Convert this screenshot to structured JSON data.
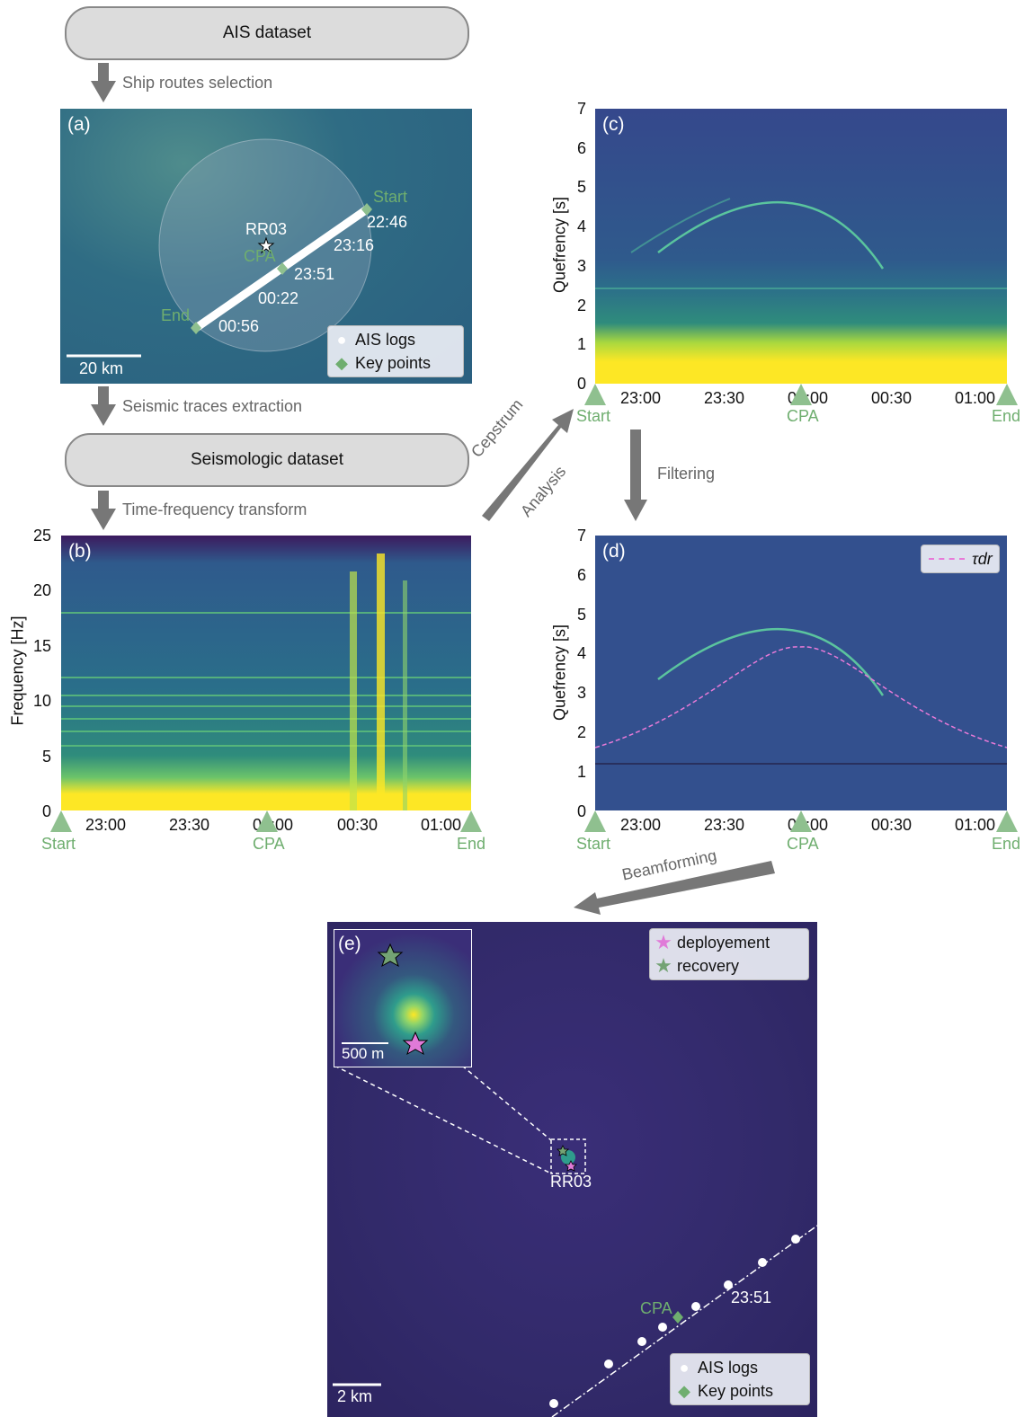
{
  "boxes": {
    "ais": "AIS dataset",
    "seismo": "Seismologic dataset"
  },
  "steps": {
    "route": "Ship routes selection",
    "extract": "Seismic traces extraction",
    "tf": "Time-frequency transform",
    "cepstrum1": "Cepstrum",
    "cepstrum2": "Analysis",
    "filtering": "Filtering",
    "beamforming": "Beamforming"
  },
  "panel_a": {
    "label": "(a)",
    "station": "RR03",
    "start": "Start",
    "end": "End",
    "cpa": "CPA",
    "times": [
      "22:46",
      "23:16",
      "23:51",
      "00:22",
      "00:56"
    ],
    "scale": "20 km",
    "legend": [
      "AIS logs",
      "Key points"
    ]
  },
  "panel_b": {
    "label": "(b)",
    "ylabel": "Frequency [Hz]",
    "yticks": [
      "25",
      "20",
      "15",
      "10",
      "5",
      "0"
    ],
    "xticks": [
      "23:00",
      "23:30",
      "00:00",
      "00:30",
      "01:00"
    ],
    "markers": [
      "Start",
      "CPA",
      "End"
    ]
  },
  "panel_c": {
    "label": "(c)",
    "ylabel": "Quefrency [s]",
    "yticks": [
      "7",
      "6",
      "5",
      "4",
      "3",
      "2",
      "1",
      "0"
    ],
    "xticks": [
      "23:00",
      "23:30",
      "00:00",
      "00:30",
      "01:00"
    ],
    "markers": [
      "Start",
      "CPA",
      "End"
    ]
  },
  "panel_d": {
    "label": "(d)",
    "ylabel": "Quefrency [s]",
    "yticks": [
      "7",
      "6",
      "5",
      "4",
      "3",
      "2",
      "1",
      "0"
    ],
    "xticks": [
      "23:00",
      "23:30",
      "00:00",
      "00:30",
      "01:00"
    ],
    "markers": [
      "Start",
      "CPA",
      "End"
    ],
    "legend": "τdr"
  },
  "panel_e": {
    "label": "(e)",
    "station": "RR03",
    "inset_scale": "500 m",
    "scale": "2 km",
    "time": "23:51",
    "cpa": "CPA",
    "legend_top": [
      "deployement",
      "recovery"
    ],
    "legend_bottom": [
      "AIS logs",
      "Key points"
    ]
  },
  "colors": {
    "green": "#6fae6f",
    "viridis_dark": "#3b2f6e",
    "viridis_mid": "#2f6f8e",
    "yellow": "#fde725"
  }
}
